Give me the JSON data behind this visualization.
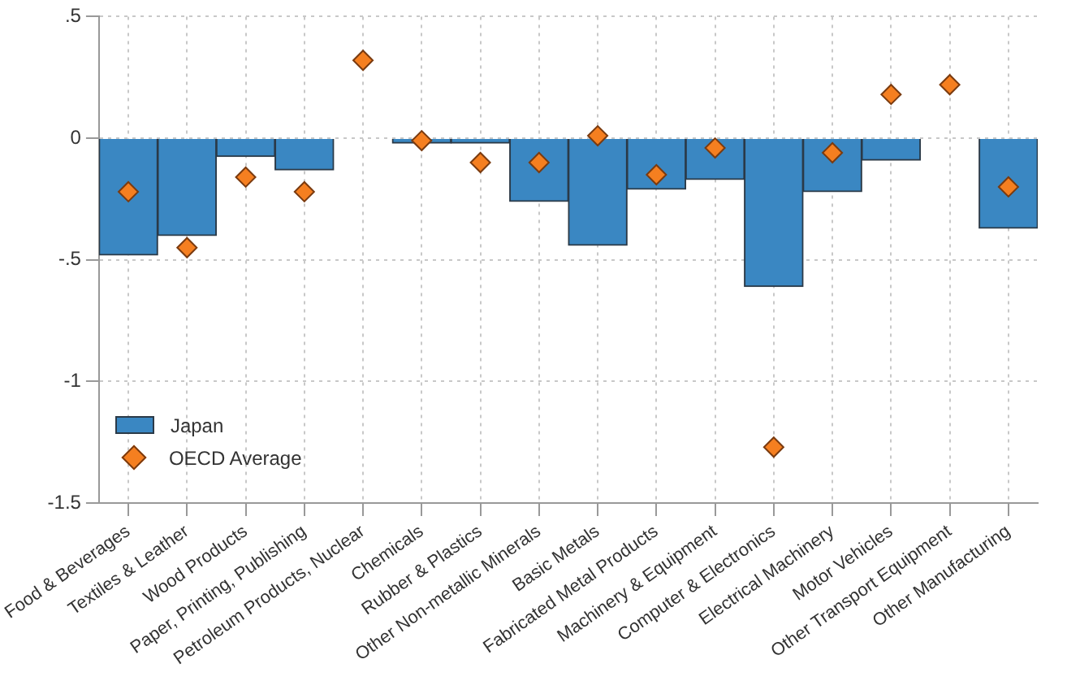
{
  "chart_data": {
    "type": "bar",
    "categories": [
      "Food & Beverages",
      "Textiles & Leather",
      "Wood Products",
      "Paper, Printing, Publishing",
      "Petroleum Products, Nuclear",
      "Chemicals",
      "Rubber & Plastics",
      "Other Non-metallic Minerals",
      "Basic Metals",
      "Fabricated Metal Products",
      "Machinery & Equipment",
      "Computer & Electronics",
      "Electrical Machinery",
      "Motor Vehicles",
      "Other Transport Equipment",
      "Other Manufacturing"
    ],
    "series": [
      {
        "name": "Japan",
        "color": "#3a87c2",
        "values": [
          -0.48,
          -0.4,
          -0.075,
          -0.13,
          0,
          -0.02,
          -0.02,
          -0.26,
          -0.44,
          -0.21,
          -0.17,
          -0.61,
          -0.22,
          -0.09,
          0,
          -0.37
        ]
      },
      {
        "name": "OECD Average",
        "type": "scatter",
        "color": "#f57f20",
        "x": [
          "Food & Beverages",
          "Textiles & Leather",
          "Wood Products",
          "Paper, Printing, Publishing",
          "Petroleum Products, Nuclear",
          "Chemicals",
          "Rubber & Plastics",
          "Other Non-metallic Minerals",
          "Basic Metals",
          "Fabricated Metal Products",
          "Machinery & Equipment",
          "Computer & Electronics",
          "Electrical Machinery",
          "Motor Vehicles",
          "Other Transport Equipment",
          "Other Manufacturing"
        ],
        "values": [
          -0.22,
          -0.45,
          -0.16,
          -0.22,
          0.32,
          -0.01,
          -0.1,
          -0.1,
          0.01,
          -0.15,
          -0.04,
          -1.27,
          -0.06,
          0.18,
          0.22,
          -0.2
        ]
      }
    ],
    "ylim": [
      -1.5,
      0.5
    ],
    "yticks": [
      {
        "value": 0.5,
        "label": ".5"
      },
      0,
      {
        "value": -0.5,
        "label": "-.5"
      },
      -1,
      -1.5
    ],
    "grid": true,
    "legend": "bottom left",
    "marker": "diamond"
  }
}
